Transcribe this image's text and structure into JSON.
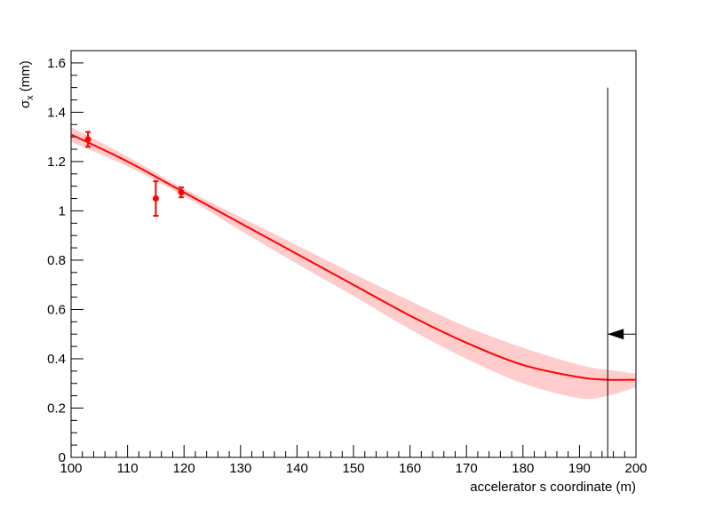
{
  "chart_data": {
    "type": "line",
    "xlabel": "accelerator s coordinate (m)",
    "ylabel": {
      "base": "σ",
      "subscript": "x",
      "unit": "(mm)"
    },
    "xlim": [
      100,
      200
    ],
    "ylim": [
      0,
      1.65
    ],
    "x_ticks": [
      100,
      110,
      120,
      130,
      140,
      150,
      160,
      170,
      180,
      190,
      200
    ],
    "y_ticks": [
      0,
      0.2,
      0.4,
      0.6,
      0.8,
      1,
      1.2,
      1.4,
      1.6
    ],
    "grid": false,
    "series": [
      {
        "kind": "fit-curve",
        "color": "#ff0000",
        "x": [
          100,
          110,
          120,
          130,
          140,
          150,
          160,
          170,
          180,
          190,
          195,
          200
        ],
        "y": [
          1.31,
          1.2,
          1.075,
          0.95,
          0.825,
          0.7,
          0.575,
          0.465,
          0.375,
          0.325,
          0.315,
          0.315
        ]
      },
      {
        "kind": "uncertainty-band",
        "color": "#ffcccc",
        "x": [
          100,
          110,
          120,
          130,
          140,
          150,
          160,
          170,
          180,
          190,
          195,
          200
        ],
        "upper": [
          1.34,
          1.22,
          1.09,
          0.975,
          0.86,
          0.745,
          0.635,
          0.53,
          0.445,
          0.375,
          0.355,
          0.34
        ],
        "lower": [
          1.28,
          1.18,
          1.06,
          0.92,
          0.785,
          0.655,
          0.52,
          0.4,
          0.3,
          0.24,
          0.25,
          0.285
        ]
      },
      {
        "kind": "measurements",
        "color": "#ff0000",
        "points": [
          {
            "x": 103,
            "y": 1.29,
            "err": 0.03
          },
          {
            "x": 115,
            "y": 1.05,
            "err": 0.07
          },
          {
            "x": 119.5,
            "y": 1.075,
            "err": 0.02
          }
        ]
      }
    ],
    "annotations": [
      {
        "kind": "vertical-line",
        "x": 195,
        "y_top": 1.5,
        "color": "#000000"
      },
      {
        "kind": "arrow",
        "y": 0.5,
        "x_from": 200,
        "x_to": 195,
        "direction": "left",
        "color": "#000000"
      }
    ]
  }
}
